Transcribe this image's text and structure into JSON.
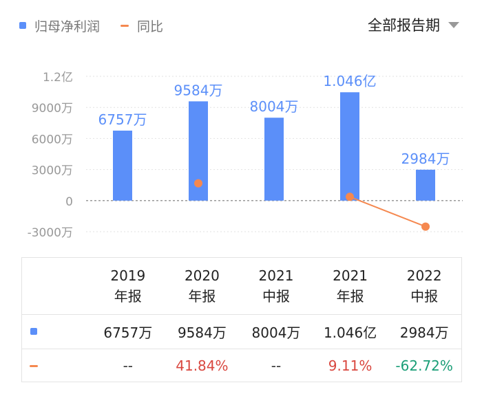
{
  "legend": {
    "bar_label": "归母净利润",
    "line_label": "同比",
    "bar_color": "#5b8ff9",
    "line_color": "#f5884f"
  },
  "period_select": {
    "label": "全部报告期"
  },
  "chart_data": {
    "type": "bar",
    "categories": [
      "2019年报",
      "2020年报",
      "2021中报",
      "2021年报",
      "2022中报"
    ],
    "y_unit": "万",
    "series": [
      {
        "name": "归母净利润",
        "type": "bar",
        "values": [
          6757,
          9584,
          8004,
          10460,
          2984
        ],
        "labels": [
          "6757万",
          "9584万",
          "8004万",
          "1.046亿",
          "2984万"
        ]
      },
      {
        "name": "同比",
        "type": "line",
        "unit": "%",
        "values": [
          null,
          41.84,
          null,
          9.11,
          -62.72
        ]
      }
    ],
    "y_ticks": [
      {
        "value": 12000,
        "label": "1.2亿"
      },
      {
        "value": 9000,
        "label": "9000万"
      },
      {
        "value": 6000,
        "label": "6000万"
      },
      {
        "value": 3000,
        "label": "3000万"
      },
      {
        "value": 0,
        "label": "0"
      },
      {
        "value": -3000,
        "label": "-3000万"
      }
    ],
    "ylim": [
      -3000,
      12000
    ],
    "grid": true,
    "legend_position": "top-left"
  },
  "table": {
    "headers": [
      {
        "year": "2019",
        "period": "年报"
      },
      {
        "year": "2020",
        "period": "年报"
      },
      {
        "year": "2021",
        "period": "中报"
      },
      {
        "year": "2021",
        "period": "年报"
      },
      {
        "year": "2022",
        "period": "中报"
      }
    ],
    "profit_row": [
      "6757万",
      "9584万",
      "8004万",
      "1.046亿",
      "2984万"
    ],
    "yoy_row": [
      {
        "text": "--",
        "color": "#333333"
      },
      {
        "text": "41.84%",
        "color": "#d9473f"
      },
      {
        "text": "--",
        "color": "#333333"
      },
      {
        "text": "9.11%",
        "color": "#d9473f"
      },
      {
        "text": "-62.72%",
        "color": "#1a9e77"
      }
    ]
  }
}
